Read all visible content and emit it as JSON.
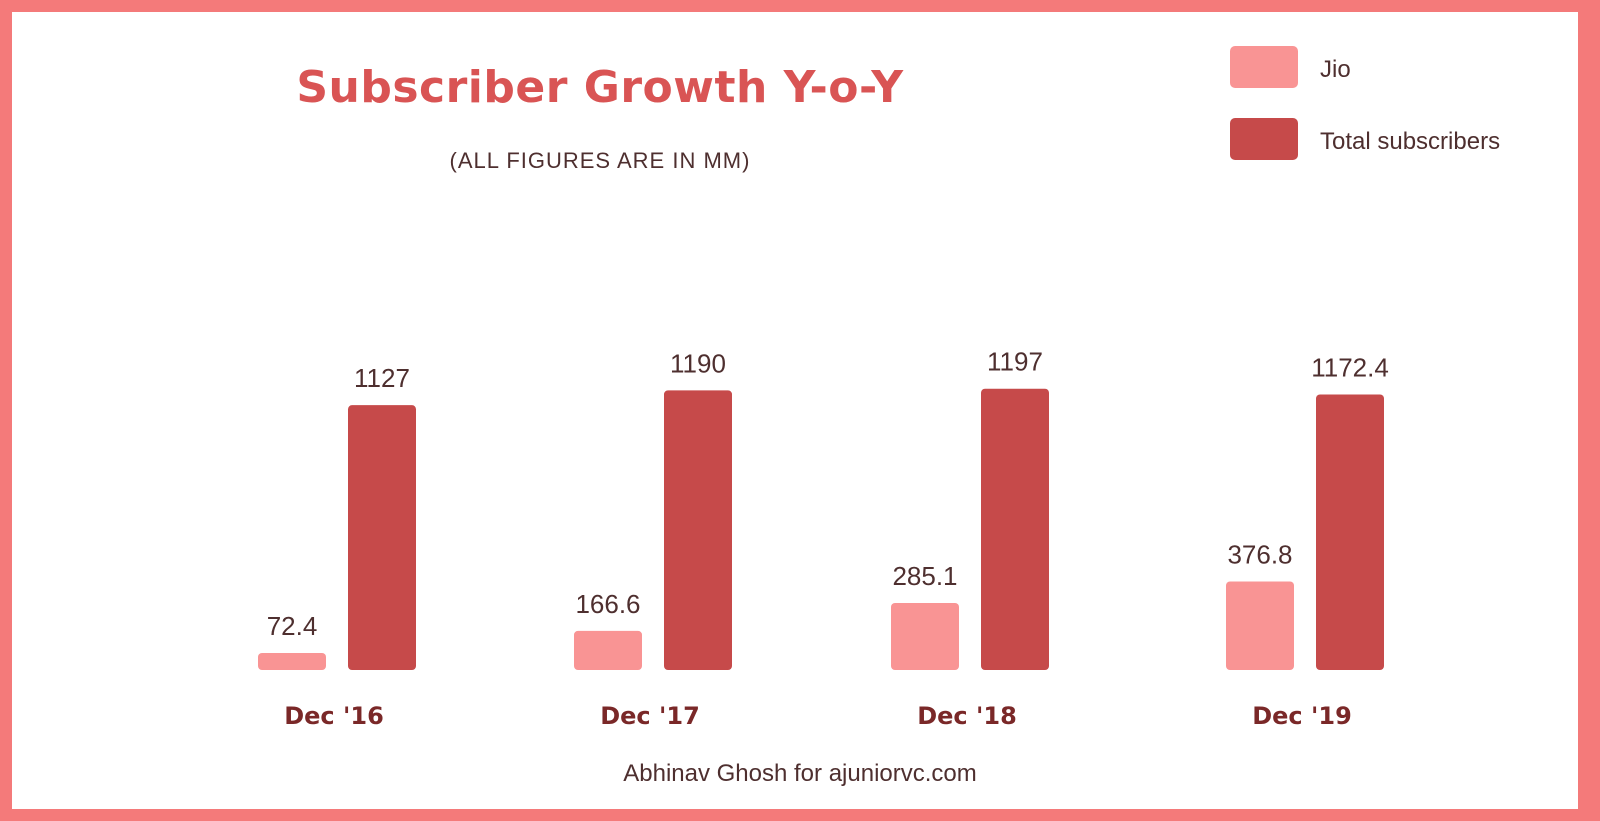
{
  "colors": {
    "frame": "#f47a7a",
    "jio": "#f99494",
    "total": "#c64a4a",
    "title": "#d95454",
    "text": "#4e2f2f",
    "category": "#7a2828"
  },
  "credit": "Abhinav Ghosh for ajuniorvc.com",
  "chart_data": {
    "type": "bar",
    "title": "Subscriber Growth Y-o-Y",
    "subtitle": "(ALL FIGURES ARE IN MM)",
    "xlabel": "",
    "ylabel": "",
    "grid": false,
    "legend_position": "top-right",
    "categories": [
      "Dec '16",
      "Dec '17",
      "Dec '18",
      "Dec '19"
    ],
    "series": [
      {
        "name": "Jio",
        "values": [
          72.4,
          166.6,
          285.1,
          376.8
        ],
        "labels": [
          "72.4",
          "166.6",
          "285.1",
          "376.8"
        ]
      },
      {
        "name": "Total subscribers",
        "values": [
          1127,
          1190,
          1197,
          1172.4
        ],
        "labels": [
          "1127",
          "1190",
          "1197",
          "1172.4"
        ]
      }
    ]
  }
}
